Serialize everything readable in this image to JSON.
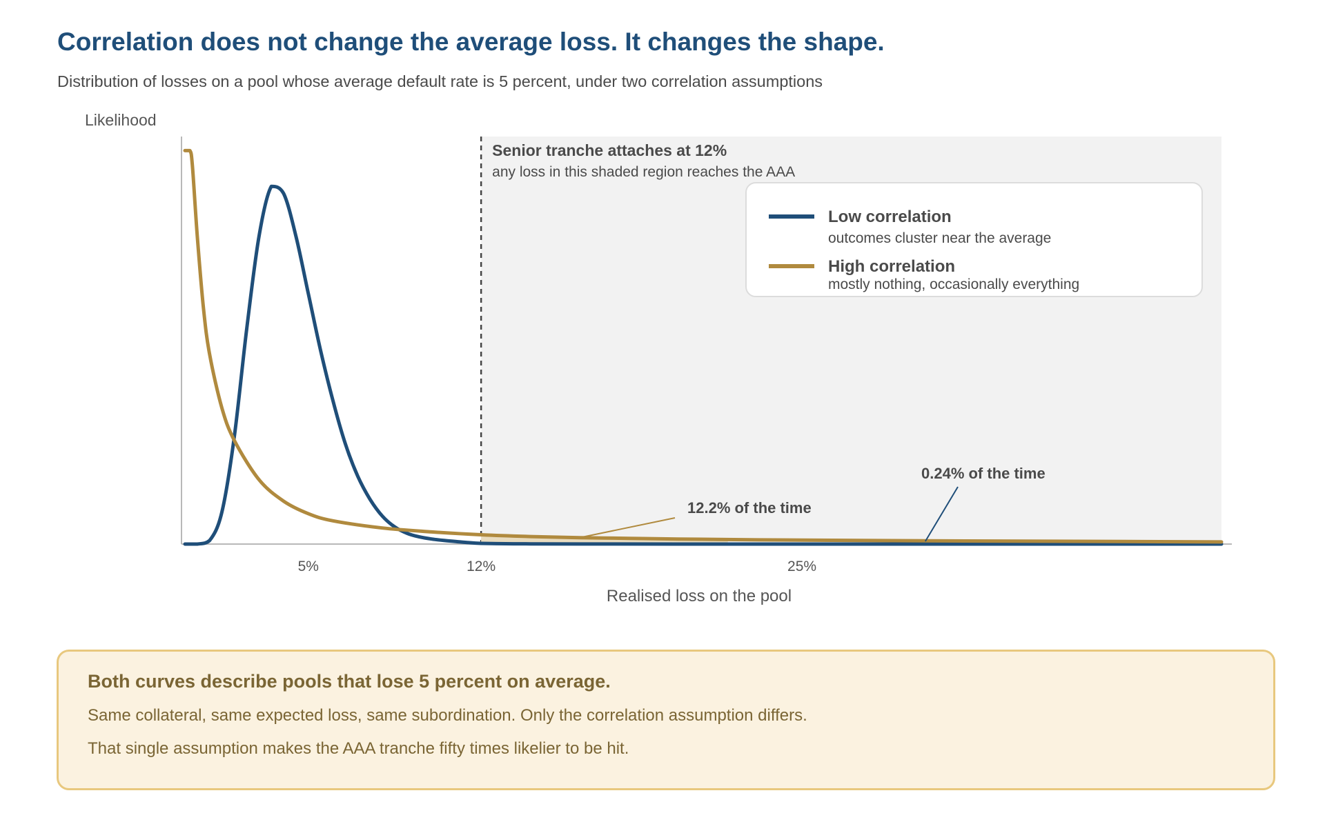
{
  "header": {
    "title": "Correlation does not change the average loss. It changes the shape.",
    "subtitle": "Distribution of losses on a pool whose average default rate is 5 percent, under two correlation assumptions"
  },
  "chart_data": {
    "type": "line",
    "title": "Correlation does not change the average loss. It changes the shape.",
    "subtitle": "Distribution of losses on a pool whose average default rate is 5 percent, under two correlation assumptions",
    "xlabel": "Realised loss on the pool",
    "ylabel": "Likelihood",
    "xlim": [
      0,
      42
    ],
    "ylim": [
      0,
      1.12
    ],
    "x_ticks": [
      5,
      12,
      25
    ],
    "x_tick_labels": [
      "5%",
      "12%",
      "25%"
    ],
    "grid": false,
    "legend_position": "top-right",
    "colors": {
      "low": "#1f4e79",
      "high": "#b08a3e",
      "shade": "#f2f2f2",
      "threshold": "#444444"
    },
    "series": [
      {
        "name": "Low correlation",
        "note": "outcomes cluster near the average",
        "color": "#1f4e79",
        "x": [
          0,
          0.5,
          1,
          1.5,
          2,
          2.5,
          3,
          3.5,
          4,
          4.5,
          5,
          5.5,
          6,
          6.5,
          7,
          7.5,
          8,
          8.5,
          9,
          9.5,
          10,
          10.5,
          11,
          11.5,
          12,
          13,
          14,
          16,
          20,
          30,
          42
        ],
        "values": [
          0,
          0,
          0.01,
          0.09,
          0.3,
          0.6,
          0.86,
          1.0,
          0.98,
          0.86,
          0.7,
          0.54,
          0.4,
          0.28,
          0.19,
          0.125,
          0.078,
          0.048,
          0.03,
          0.02,
          0.014,
          0.01,
          0.007,
          0.004,
          0.002,
          0.001,
          0.0005,
          0.0002,
          0,
          0,
          0
        ]
      },
      {
        "name": "High correlation",
        "note": "mostly nothing, occasionally everything",
        "color": "#b08a3e",
        "x": [
          0,
          0.2,
          0.3,
          0.5,
          0.75,
          1,
          1.5,
          2,
          3,
          4,
          5,
          6,
          8,
          10,
          12,
          14,
          16,
          18,
          20,
          25,
          30,
          35,
          42
        ],
        "values": [
          1.1,
          1.1,
          1.06,
          0.86,
          0.66,
          0.53,
          0.38,
          0.29,
          0.18,
          0.12,
          0.085,
          0.065,
          0.045,
          0.034,
          0.026,
          0.021,
          0.018,
          0.016,
          0.014,
          0.011,
          0.009,
          0.008,
          0.006
        ]
      }
    ],
    "threshold": {
      "x": 12,
      "label": "Senior tranche attaches at 12%",
      "sublabel": "any loss in this shaded region reaches the AAA"
    },
    "annotations": [
      {
        "text": "12.2% of the time",
        "series": "High correlation",
        "x": 16
      },
      {
        "text": "0.24% of the time",
        "series": "Low correlation",
        "x": 30
      }
    ]
  },
  "note": {
    "heading": "Both curves describe pools that lose 5 percent on average.",
    "line1": "Same collateral, same expected loss, same subordination. Only the correlation assumption differs.",
    "line2": "That single assumption makes the AAA tranche fifty times likelier to be hit."
  }
}
